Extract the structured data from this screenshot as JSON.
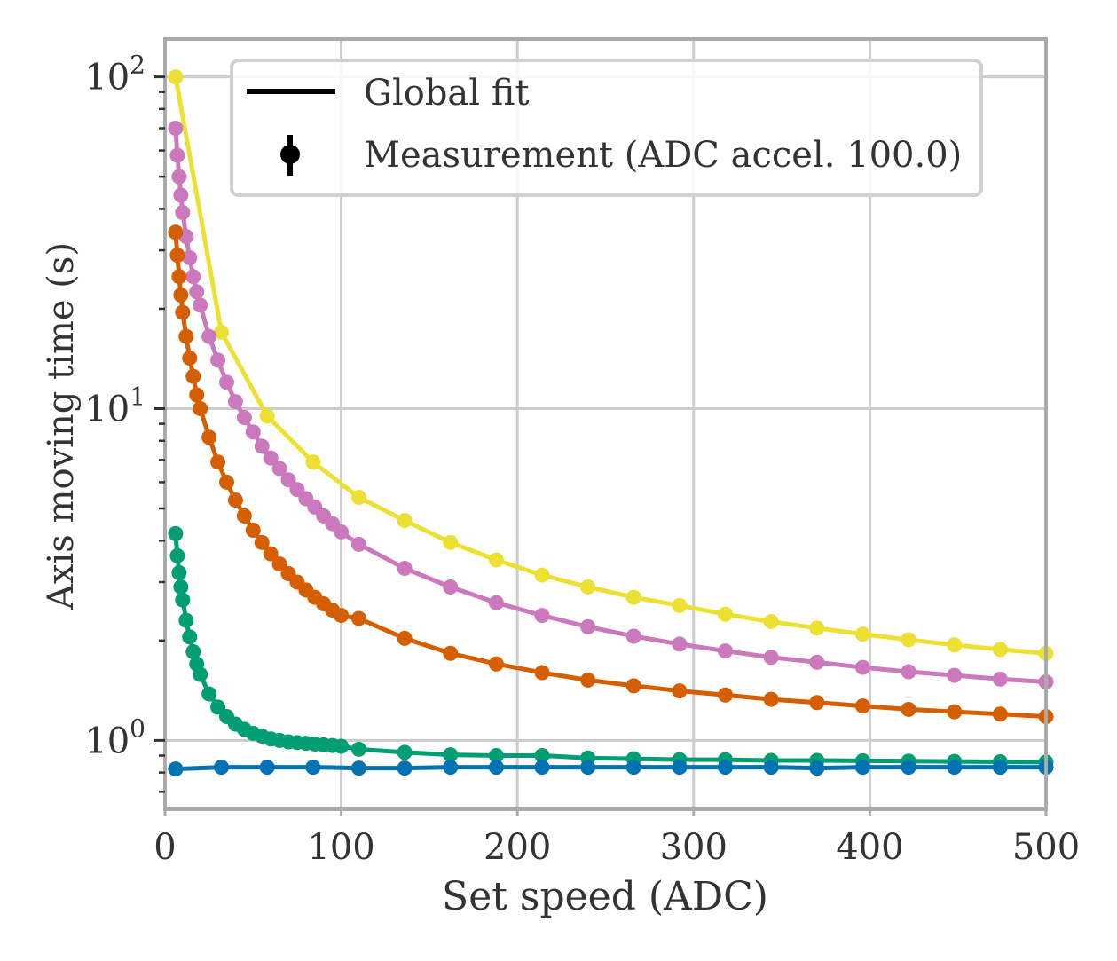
{
  "chart_data": {
    "type": "line",
    "title": "",
    "xlabel": "Set speed (ADC)",
    "ylabel": "Axis moving time (s)",
    "xlim": [
      0,
      500
    ],
    "ylim": [
      0.62,
      130
    ],
    "yscale": "log",
    "grid": true,
    "legend_position": "top-right",
    "x_ticks": [
      "0",
      "100",
      "200",
      "300",
      "400",
      "500"
    ],
    "y_ticks": [
      {
        "base": "10",
        "exp": "0",
        "value": 1
      },
      {
        "base": "10",
        "exp": "1",
        "value": 10
      },
      {
        "base": "10",
        "exp": "2",
        "value": 100
      }
    ],
    "legend": [
      {
        "label": "Global fit",
        "marker": "line"
      },
      {
        "label": "Measurement (ADC accel. 100.0)",
        "marker": "errorbar-point"
      }
    ],
    "series": [
      {
        "color": "#ece133",
        "x": [
          6,
          32,
          58,
          84,
          110,
          136,
          162,
          188,
          214,
          240,
          266,
          292,
          318,
          344,
          370,
          396,
          422,
          448,
          474,
          500
        ],
        "y": [
          100,
          17,
          9.5,
          6.9,
          5.4,
          4.6,
          3.95,
          3.5,
          3.15,
          2.9,
          2.7,
          2.55,
          2.4,
          2.28,
          2.18,
          2.09,
          2.01,
          1.94,
          1.88,
          1.83
        ]
      },
      {
        "color": "#cc78bc",
        "x": [
          6,
          7,
          8,
          9,
          10,
          12,
          14,
          16,
          18,
          20,
          25,
          30,
          35,
          40,
          45,
          50,
          55,
          60,
          65,
          70,
          75,
          80,
          85,
          90,
          95,
          100,
          110,
          136,
          162,
          188,
          214,
          240,
          266,
          292,
          318,
          344,
          370,
          396,
          422,
          448,
          474,
          500
        ],
        "y": [
          70,
          58,
          50,
          44,
          39,
          33,
          28.5,
          25,
          22.5,
          20.5,
          16.5,
          14,
          12,
          10.5,
          9.4,
          8.5,
          7.7,
          7.1,
          6.6,
          6.1,
          5.7,
          5.35,
          5.05,
          4.75,
          4.5,
          4.25,
          3.9,
          3.3,
          2.9,
          2.6,
          2.38,
          2.2,
          2.06,
          1.95,
          1.86,
          1.78,
          1.72,
          1.66,
          1.61,
          1.57,
          1.53,
          1.5
        ]
      },
      {
        "color": "#d55e00",
        "x": [
          6,
          7,
          8,
          9,
          10,
          12,
          14,
          16,
          18,
          20,
          25,
          30,
          35,
          40,
          45,
          50,
          55,
          60,
          65,
          70,
          75,
          80,
          85,
          90,
          95,
          100,
          110,
          136,
          162,
          188,
          214,
          240,
          266,
          292,
          318,
          344,
          370,
          396,
          422,
          448,
          474,
          500
        ],
        "y": [
          34,
          29,
          25,
          22,
          19.5,
          16.5,
          14.2,
          12.5,
          11,
          10,
          8.2,
          6.9,
          6,
          5.3,
          4.75,
          4.3,
          3.95,
          3.65,
          3.4,
          3.18,
          3,
          2.84,
          2.7,
          2.58,
          2.47,
          2.38,
          2.33,
          2.03,
          1.83,
          1.7,
          1.6,
          1.52,
          1.46,
          1.41,
          1.37,
          1.33,
          1.3,
          1.27,
          1.24,
          1.22,
          1.2,
          1.18
        ]
      },
      {
        "color": "#029e73",
        "x": [
          6,
          7,
          8,
          9,
          10,
          12,
          14,
          16,
          18,
          20,
          25,
          30,
          35,
          40,
          45,
          50,
          55,
          60,
          65,
          70,
          75,
          80,
          85,
          90,
          95,
          100,
          110,
          136,
          162,
          188,
          214,
          240,
          266,
          292,
          318,
          344,
          370,
          396,
          422,
          448,
          474,
          500
        ],
        "y": [
          4.2,
          3.6,
          3.2,
          2.9,
          2.65,
          2.3,
          2.05,
          1.85,
          1.7,
          1.58,
          1.38,
          1.26,
          1.18,
          1.12,
          1.08,
          1.05,
          1.03,
          1.01,
          1.0,
          0.99,
          0.985,
          0.98,
          0.975,
          0.97,
          0.965,
          0.96,
          0.94,
          0.92,
          0.905,
          0.9,
          0.9,
          0.885,
          0.88,
          0.875,
          0.875,
          0.87,
          0.87,
          0.868,
          0.866,
          0.864,
          0.862,
          0.86
        ]
      },
      {
        "color": "#0173b2",
        "x": [
          6,
          32,
          58,
          84,
          110,
          136,
          162,
          188,
          214,
          240,
          266,
          292,
          318,
          344,
          370,
          396,
          422,
          448,
          474,
          500
        ],
        "y": [
          0.82,
          0.83,
          0.83,
          0.83,
          0.825,
          0.825,
          0.83,
          0.83,
          0.83,
          0.83,
          0.83,
          0.83,
          0.83,
          0.83,
          0.825,
          0.83,
          0.83,
          0.83,
          0.83,
          0.83
        ]
      }
    ]
  }
}
